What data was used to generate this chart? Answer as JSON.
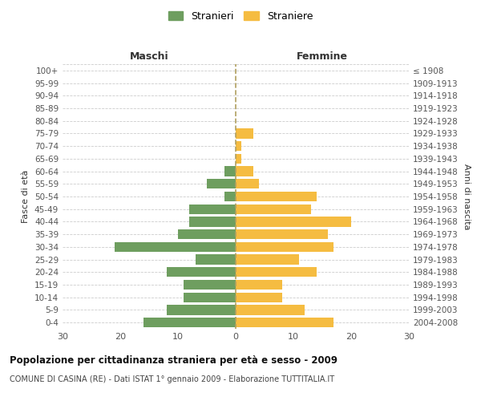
{
  "age_groups": [
    "0-4",
    "5-9",
    "10-14",
    "15-19",
    "20-24",
    "25-29",
    "30-34",
    "35-39",
    "40-44",
    "45-49",
    "50-54",
    "55-59",
    "60-64",
    "65-69",
    "70-74",
    "75-79",
    "80-84",
    "85-89",
    "90-94",
    "95-99",
    "100+"
  ],
  "birth_years": [
    "2004-2008",
    "1999-2003",
    "1994-1998",
    "1989-1993",
    "1984-1988",
    "1979-1983",
    "1974-1978",
    "1969-1973",
    "1964-1968",
    "1959-1963",
    "1954-1958",
    "1949-1953",
    "1944-1948",
    "1939-1943",
    "1934-1938",
    "1929-1933",
    "1924-1928",
    "1919-1923",
    "1914-1918",
    "1909-1913",
    "≤ 1908"
  ],
  "males": [
    16,
    12,
    9,
    9,
    12,
    7,
    21,
    10,
    8,
    8,
    2,
    5,
    2,
    0,
    0,
    0,
    0,
    0,
    0,
    0,
    0
  ],
  "females": [
    17,
    12,
    8,
    8,
    14,
    11,
    17,
    16,
    20,
    13,
    14,
    4,
    3,
    1,
    1,
    3,
    0,
    0,
    0,
    0,
    0
  ],
  "male_color": "#6e9e5f",
  "female_color": "#f5bc41",
  "xlim": 30,
  "title": "Popolazione per cittadinanza straniera per età e sesso - 2009",
  "subtitle": "COMUNE DI CASINA (RE) - Dati ISTAT 1° gennaio 2009 - Elaborazione TUTTITALIA.IT",
  "left_label": "Maschi",
  "right_label": "Femmine",
  "y_left_label": "Fasce di età",
  "y_right_label": "Anni di nascita",
  "legend_male": "Stranieri",
  "legend_female": "Straniere",
  "background_color": "#ffffff",
  "grid_color": "#cccccc",
  "dashed_line_color": "#b0a060",
  "tick_color": "#555555",
  "header_color": "#333333",
  "title_color": "#111111",
  "subtitle_color": "#444444"
}
